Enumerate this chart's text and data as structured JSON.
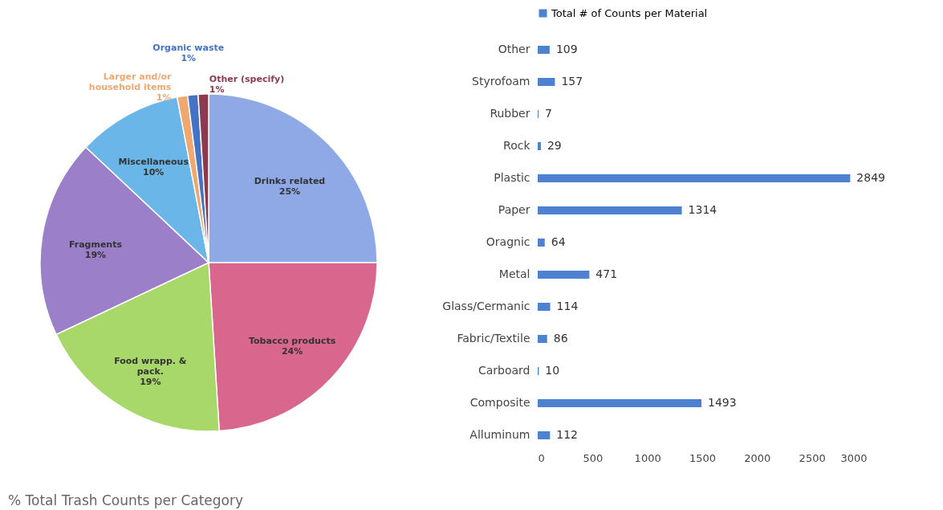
{
  "chart_data": [
    {
      "type": "pie",
      "title": "% Total Trash Counts per Category",
      "categories": [
        "Drinks related",
        "Tobacco products",
        "Food wrapp. & pack.",
        "Fragments",
        "Miscellaneous",
        "Larger and/or household items",
        "Organic waste",
        "Other (specify)"
      ],
      "values": [
        25,
        24,
        19,
        19,
        10,
        1,
        1,
        1
      ],
      "value_labels": [
        "25%",
        "24%",
        "19%",
        "19%",
        "10%",
        "1%",
        "1%",
        "1%"
      ],
      "colors": [
        "#8fa8e6",
        "#d9668c",
        "#a8d86a",
        "#9b7fc9",
        "#6ab6e8",
        "#f0a870",
        "#4472c4",
        "#8b3a50"
      ]
    },
    {
      "type": "bar",
      "orientation": "horizontal",
      "categories": [
        "Other",
        "Styrofoam",
        "Rubber",
        "Rock",
        "Plastic",
        "Paper",
        "Oragnic",
        "Metal",
        "Glass/Cermanic",
        "Fabric/Textile",
        "Carboard",
        "Composite",
        "Alluminum"
      ],
      "series": [
        {
          "name": "Total # of Counts per Material",
          "color": "#4f81d1",
          "values": [
            109,
            157,
            7,
            29,
            2849,
            1314,
            64,
            471,
            114,
            86,
            10,
            1493,
            112
          ]
        }
      ],
      "xlim": [
        0,
        3000
      ],
      "xticks": [
        0,
        500,
        {
          "value": 1000,
          "label": "1000"
        },
        {
          "value": 1500,
          "label": "1500"
        },
        {
          "value": 2000,
          "label": "2000"
        },
        {
          "value": 2500,
          "label": "2500"
        },
        {
          "value": 3000,
          "label": "3000"
        }
      ],
      "data_labels": true,
      "legend": "top",
      "grid": false
    }
  ]
}
